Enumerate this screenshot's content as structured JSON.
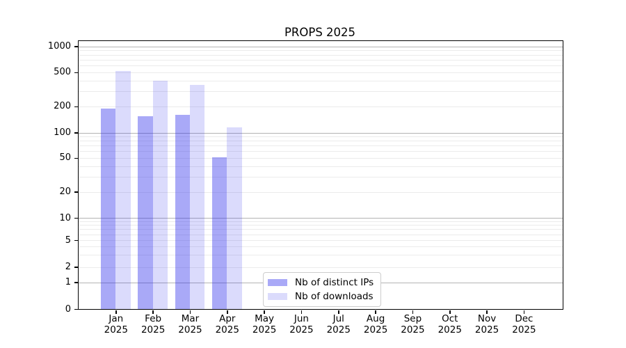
{
  "chart_data": {
    "type": "bar",
    "title": "PROPS 2025",
    "categories": [
      [
        "Jan",
        "2025"
      ],
      [
        "Feb",
        "2025"
      ],
      [
        "Mar",
        "2025"
      ],
      [
        "Apr",
        "2025"
      ],
      [
        "May",
        "2025"
      ],
      [
        "Jun",
        "2025"
      ],
      [
        "Jul",
        "2025"
      ],
      [
        "Aug",
        "2025"
      ],
      [
        "Sep",
        "2025"
      ],
      [
        "Oct",
        "2025"
      ],
      [
        "Nov",
        "2025"
      ],
      [
        "Dec",
        "2025"
      ]
    ],
    "series": [
      {
        "name": "Nb of distinct IPs",
        "color": "rgba(40,40,235,0.40)",
        "values": [
          190,
          153,
          160,
          51,
          null,
          null,
          null,
          null,
          null,
          null,
          null,
          null
        ]
      },
      {
        "name": "Nb of downloads",
        "color": "rgba(40,40,235,0.17)",
        "values": [
          520,
          400,
          355,
          115,
          null,
          null,
          null,
          null,
          null,
          null,
          null,
          null
        ]
      }
    ],
    "y_scale": "symlog",
    "ylim": [
      0,
      1000
    ],
    "y_ticks": [
      0,
      1,
      2,
      5,
      10,
      20,
      50,
      100,
      200,
      500,
      1000
    ],
    "y_major_gridlines": [
      1,
      10,
      100,
      1000
    ],
    "y_minor_gridlines": [
      3,
      4,
      6,
      7,
      8,
      9,
      30,
      40,
      60,
      70,
      80,
      90,
      300,
      400,
      600,
      700,
      800,
      900
    ],
    "grid": "on",
    "legend_position": "lower center",
    "colors": {
      "axis": "#000000",
      "grid_major": "#b3b3b3",
      "grid_minor": "#ebebeb",
      "legend_border": "#cccccc",
      "background": "#ffffff"
    }
  }
}
